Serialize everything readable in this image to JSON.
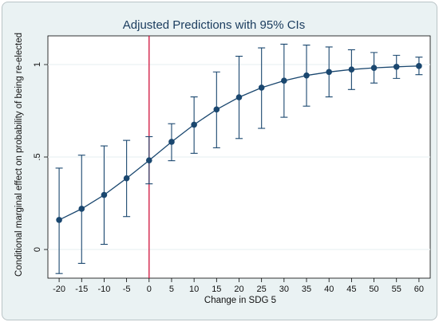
{
  "chart_data": {
    "type": "line",
    "title": "Adjusted Predictions with 95% CIs",
    "xlabel": "Change in SDG 5",
    "ylabel": "Conditional marginal effect on probability of being re-elected",
    "x": [
      -20,
      -15,
      -10,
      -5,
      0,
      5,
      10,
      15,
      20,
      25,
      30,
      35,
      40,
      45,
      50,
      55,
      60
    ],
    "series": [
      {
        "values": [
          0.16,
          0.22,
          0.295,
          0.385,
          0.482,
          0.582,
          0.675,
          0.757,
          0.823,
          0.875,
          0.913,
          0.941,
          0.96,
          0.973,
          0.982,
          0.988,
          0.992
        ],
        "lower": [
          -0.13,
          -0.075,
          0.028,
          0.178,
          0.355,
          0.48,
          0.52,
          0.55,
          0.6,
          0.655,
          0.715,
          0.775,
          0.825,
          0.865,
          0.9,
          0.925,
          0.945
        ],
        "upper": [
          0.44,
          0.51,
          0.56,
          0.59,
          0.61,
          0.68,
          0.825,
          0.96,
          1.045,
          1.09,
          1.11,
          1.105,
          1.095,
          1.08,
          1.065,
          1.05,
          1.04
        ]
      }
    ],
    "xticks": [
      "-20",
      "-15",
      "-10",
      "-5",
      "0",
      "5",
      "10",
      "15",
      "20",
      "25",
      "30",
      "35",
      "40",
      "45",
      "50",
      "55",
      "60"
    ],
    "yticks": [
      "0",
      ".5",
      "1"
    ],
    "ytick_values": [
      0,
      0.5,
      1
    ],
    "xlim": [
      -22.5,
      62.5
    ],
    "ylim": [
      -0.155,
      1.155
    ],
    "reference_line": {
      "x": 0,
      "color": "#d0103a"
    },
    "grid": "horizontal",
    "colors": {
      "series": "#1a476f",
      "grid": "#eaf2f3",
      "plot_bg": "#ffffff",
      "frame_bg": "#eaf2f3"
    }
  }
}
